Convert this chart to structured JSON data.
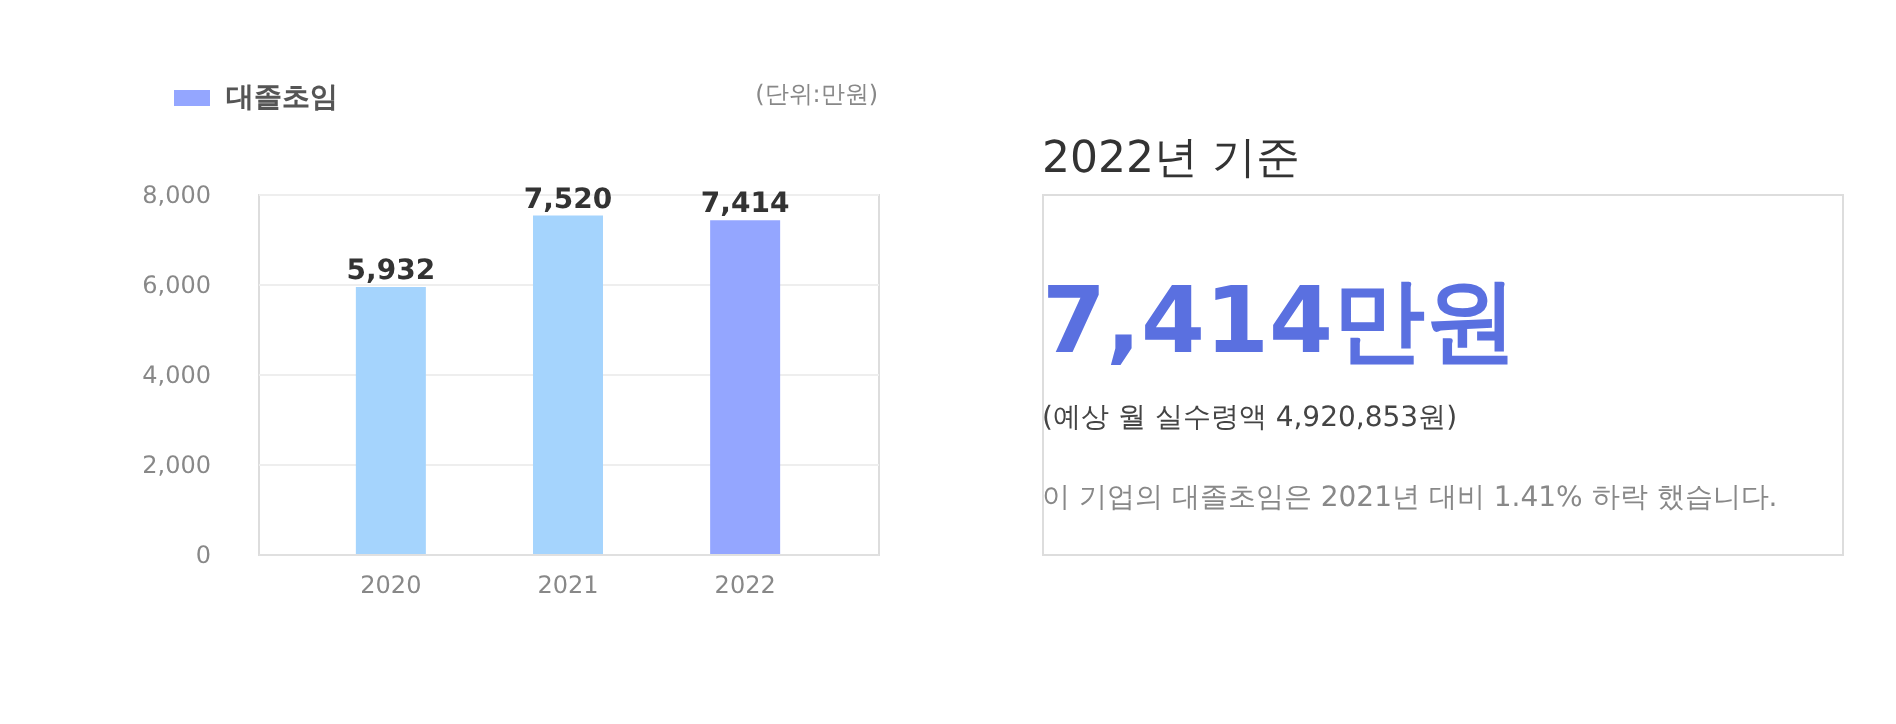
{
  "chart_data": [
    {
      "type": "bar",
      "categories": [
        "2020",
        "2021",
        "2022"
      ],
      "series": [
        {
          "name": "대졸초임",
          "color": "#94a6ff",
          "colors": [
            "#a5d4fd",
            "#a5d4fd",
            "#94a6ff"
          ],
          "values": [
            5932,
            7520,
            7414
          ],
          "value_labels": [
            "5,932",
            "7,520",
            "7,414"
          ]
        }
      ],
      "ylim": [
        0,
        8000
      ],
      "yticks": [
        0,
        {
          "value": 2000,
          "label": "2,000"
        },
        {
          "value": 4000,
          "label": "4,000"
        },
        {
          "value": 6000,
          "label": "6,000"
        },
        {
          "value": 8000,
          "label": "8,000"
        }
      ],
      "grid": "y",
      "legend": "top left",
      "annotations": [
        "(단위:만원)"
      ]
    },
    {
      "type": "other",
      "title": "2022년 기준",
      "annotations": [
        "7,414만원",
        "(예상 월 실수령액 4,920,853원)",
        "이 기업의 대졸초임은 2021년 대비 1.41% 하락 했습니다."
      ]
    }
  ]
}
